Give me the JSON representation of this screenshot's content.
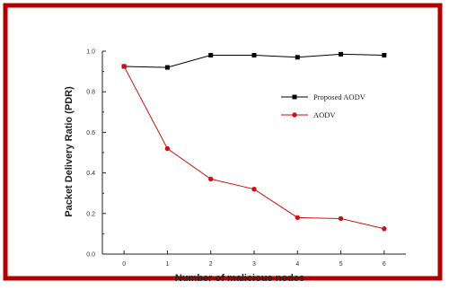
{
  "colors": {
    "frame": "#b00000",
    "proposed_series": "#000000",
    "aodv_series": "#cc1111",
    "axis": "#222222"
  },
  "chart_data": {
    "type": "line",
    "xlabel": "Number of malicious nodes",
    "ylabel": "Packet Delivery Ratio (PDR)",
    "x": [
      0,
      1,
      2,
      3,
      4,
      5,
      6
    ],
    "xticks": [
      "0",
      "1",
      "2",
      "3",
      "4",
      "5",
      "6"
    ],
    "yticks": [
      "0.0",
      "0.2",
      "0.4",
      "0.6",
      "0.8",
      "1.0"
    ],
    "xlim": [
      -0.5,
      6.5
    ],
    "ylim": [
      0.0,
      1.0
    ],
    "grid": false,
    "legend_position": "top-right",
    "series": [
      {
        "name": "Proposed AODV",
        "marker": "square",
        "values": [
          0.925,
          0.92,
          0.98,
          0.98,
          0.97,
          0.985,
          0.98
        ]
      },
      {
        "name": "AODV",
        "marker": "circle",
        "values": [
          0.925,
          0.52,
          0.37,
          0.32,
          0.18,
          0.175,
          0.125
        ]
      }
    ]
  }
}
